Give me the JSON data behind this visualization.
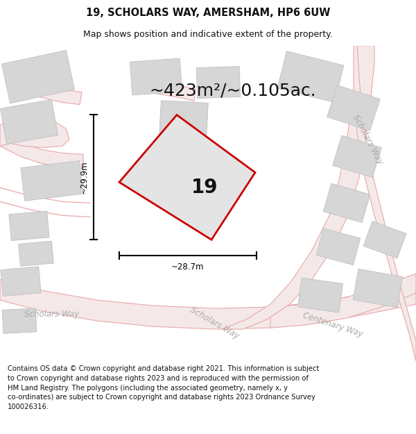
{
  "title_line1": "19, SCHOLARS WAY, AMERSHAM, HP6 6UW",
  "title_line2": "Map shows position and indicative extent of the property.",
  "area_text": "~423m²/~0.105ac.",
  "property_number": "19",
  "dim_height_label": "~29.9m",
  "dim_width_label": "~28.7m",
  "footer_text": "Contains OS data © Crown copyright and database right 2021. This information is subject\nto Crown copyright and database rights 2023 and is reproduced with the permission of\nHM Land Registry. The polygons (including the associated geometry, namely x, y\nco-ordinates) are subject to Crown copyright and database rights 2023 Ordnance Survey\n100026316.",
  "map_bg": "#f0f0f0",
  "building_fill": "#d6d6d6",
  "building_edge": "#c0c0c0",
  "road_line_color": "#e8a8a8",
  "road_fill_color": "#f5e8e8",
  "plot_fill": "#e4e4e4",
  "plot_edge": "#cc0000",
  "text_color": "#111111",
  "road_label_color": "#aaaaaa",
  "title_fontsize": 10.5,
  "subtitle_fontsize": 9,
  "area_fontsize": 18,
  "num_fontsize": 20,
  "dim_fontsize": 8.5,
  "footer_fontsize": 7.2,
  "road_label_fontsize": 8.5
}
